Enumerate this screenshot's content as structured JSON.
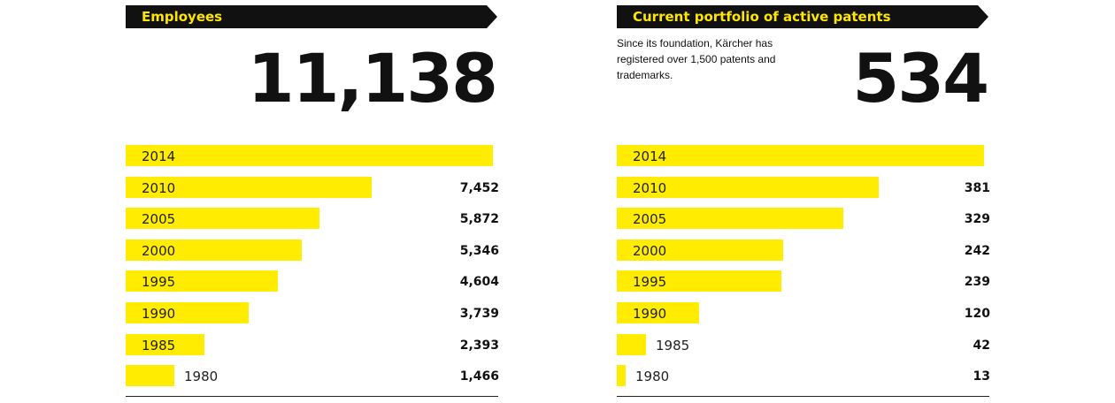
{
  "colors": {
    "bar": "#ffec00",
    "banner": "#111111",
    "banner_text": "#ffe600"
  },
  "employees": {
    "header": "Employees",
    "total": "11,138",
    "chart_data": {
      "type": "bar",
      "orientation": "horizontal",
      "title": "Employees",
      "categories": [
        "2014",
        "2010",
        "2005",
        "2000",
        "1995",
        "1990",
        "1985",
        "1980"
      ],
      "values": [
        11138,
        7452,
        5872,
        5346,
        4604,
        3739,
        2393,
        1466
      ],
      "value_labels": [
        "",
        "7,452",
        "5,872",
        "5,346",
        "4,604",
        "3,739",
        "2,393",
        "1,466"
      ],
      "xlim": [
        0,
        11138
      ],
      "grid": false,
      "legend": "none"
    }
  },
  "patents": {
    "header": "Current portfolio of active patents",
    "description": "Since its foundation, Kärcher has registered over 1,500 patents and trademarks.",
    "total": "534",
    "chart_data": {
      "type": "bar",
      "orientation": "horizontal",
      "title": "Current portfolio of active patents",
      "categories": [
        "2014",
        "2010",
        "2005",
        "2000",
        "1995",
        "1990",
        "1985",
        "1980"
      ],
      "values": [
        534,
        381,
        329,
        242,
        239,
        120,
        42,
        13
      ],
      "value_labels": [
        "",
        "381",
        "329",
        "242",
        "239",
        "120",
        "42",
        "13"
      ],
      "xlim": [
        0,
        534
      ],
      "grid": false,
      "legend": "none"
    }
  }
}
